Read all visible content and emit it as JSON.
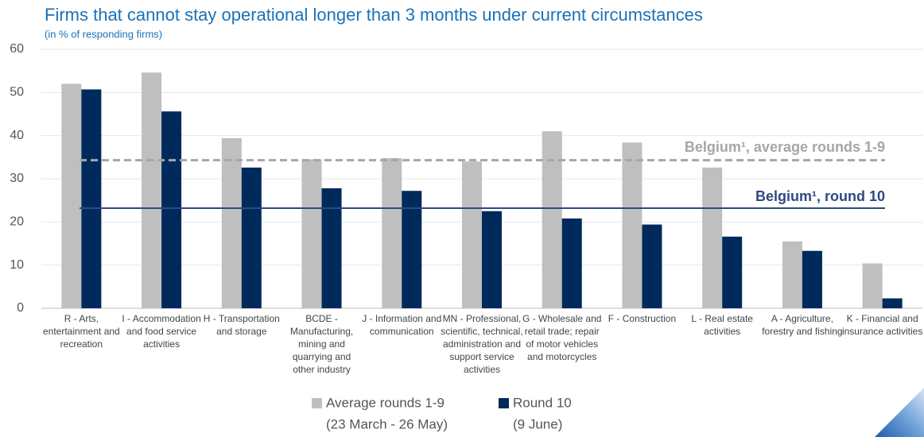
{
  "chart_data": {
    "type": "bar",
    "title": "Firms that cannot stay operational longer than 3 months under current circumstances",
    "subtitle": "(in % of responding firms)",
    "categories": [
      [
        "R - Arts,",
        "entertainment and",
        "recreation"
      ],
      [
        "I - Accommodation",
        "and food service",
        "activities"
      ],
      [
        "H - Transportation",
        "and storage"
      ],
      [
        "BCDE -",
        "Manufacturing,",
        "mining and",
        "quarrying and",
        "other industry"
      ],
      [
        "J - Information and",
        "communication"
      ],
      [
        "MN - Professional,",
        "scientific, technical,",
        "administration and",
        "support service",
        "activities"
      ],
      [
        "G - Wholesale and",
        "retail trade; repair",
        "of motor vehicles",
        "and motorcycles"
      ],
      [
        "F - Construction"
      ],
      [
        "L - Real estate",
        "activities"
      ],
      [
        "A - Agriculture,",
        "forestry and fishing"
      ],
      [
        "K - Financial and",
        "insurance activities"
      ]
    ],
    "series": [
      {
        "name": "Average rounds 1-9",
        "period": "(23 March - 26 May)",
        "color": "#bfbfbf",
        "values": [
          52,
          54.6,
          39.4,
          34.5,
          34.8,
          34,
          41,
          38.4,
          32.6,
          15.5,
          10.4
        ]
      },
      {
        "name": "Round 10",
        "period": "(9 June)",
        "color": "#002a5c",
        "values": [
          50.7,
          45.6,
          32.6,
          27.8,
          27.2,
          22.5,
          20.8,
          19.4,
          16.6,
          13.3,
          2.3
        ]
      }
    ],
    "reference_lines": [
      {
        "label": "Belgium¹, average rounds 1-9",
        "value": 34.3,
        "color": "#a6a6a6",
        "style": "dashed"
      },
      {
        "label": "Belgium¹, round 10",
        "value": 23.2,
        "color": "#2f4a80",
        "style": "solid"
      }
    ],
    "ylim": [
      0,
      60
    ],
    "yticks": [
      0,
      10,
      20,
      30,
      40,
      50,
      60
    ],
    "grid": true
  }
}
